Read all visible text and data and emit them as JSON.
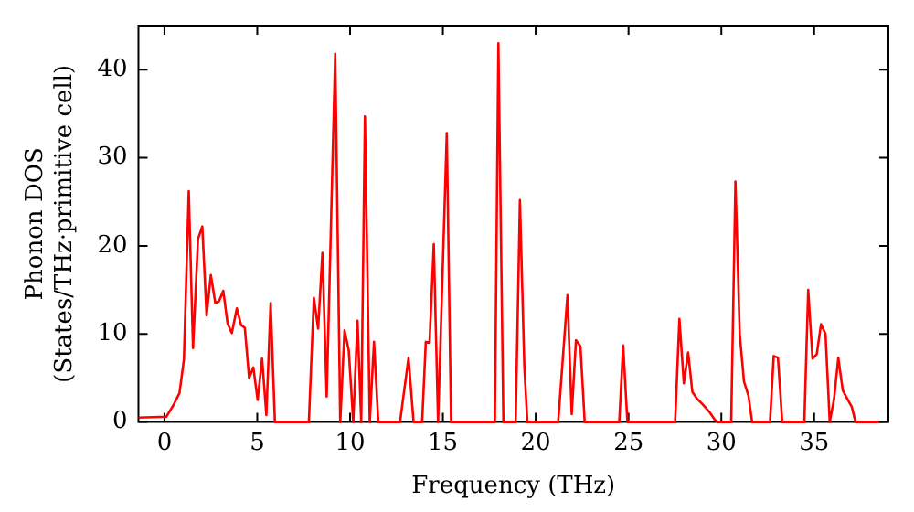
{
  "chart_data": {
    "type": "line",
    "xlabel": "Frequency (THz)",
    "ylabel": "Phonon DOS\n(States/THz·primitive cell)",
    "x": [
      -1.4,
      0.1,
      0.48,
      0.81,
      1.05,
      1.31,
      1.54,
      1.81,
      2.04,
      2.27,
      2.5,
      2.74,
      2.94,
      3.17,
      3.4,
      3.63,
      3.9,
      4.13,
      4.33,
      4.56,
      4.79,
      5.02,
      5.26,
      5.49,
      5.72,
      5.95,
      7.78,
      8.05,
      8.28,
      8.51,
      8.74,
      9.2,
      9.47,
      9.7,
      9.93,
      10.17,
      10.4,
      10.6,
      10.8,
      11.06,
      11.29,
      11.52,
      12.69,
      13.15,
      13.42,
      13.88,
      14.08,
      14.28,
      14.51,
      14.74,
      15.21,
      15.44,
      17.8,
      17.99,
      18.26,
      18.92,
      19.15,
      19.39,
      19.55,
      21.21,
      21.71,
      21.94,
      22.17,
      22.41,
      22.64,
      24.5,
      24.71,
      24.94,
      27.51,
      27.74,
      27.98,
      28.21,
      28.44,
      28.67,
      29.0,
      29.34,
      29.67,
      29.83,
      30.53,
      30.76,
      30.99,
      31.22,
      31.46,
      31.66,
      32.62,
      32.82,
      33.05,
      33.28,
      34.47,
      34.68,
      34.91,
      35.14,
      35.37,
      35.61,
      35.84,
      36.07,
      36.3,
      36.54,
      36.77,
      37.03,
      37.23,
      38.5
    ],
    "series": [
      {
        "color": "#ff0000",
        "values": [
          0.5,
          0.6,
          1.9,
          3.3,
          7.1,
          26.2,
          8.4,
          20.8,
          22.2,
          12.1,
          16.7,
          13.5,
          13.7,
          14.9,
          11.2,
          10.1,
          12.9,
          11.0,
          10.7,
          5.0,
          6.2,
          2.5,
          7.2,
          0.8,
          13.5,
          0,
          0,
          14.1,
          10.6,
          19.2,
          2.9,
          41.8,
          0,
          10.4,
          8.1,
          0,
          11.5,
          0,
          34.7,
          0,
          9.1,
          0,
          0,
          7.3,
          0,
          0,
          9.1,
          9.0,
          20.2,
          0,
          32.8,
          0,
          0,
          43,
          0,
          0,
          25.2,
          6.2,
          0,
          0,
          14.4,
          0.9,
          9.3,
          8.6,
          0,
          0,
          8.7,
          0,
          0,
          11.7,
          4.4,
          7.9,
          3.4,
          2.7,
          2.0,
          1.2,
          0.2,
          0,
          0,
          27.3,
          10.0,
          4.6,
          3.0,
          0,
          0,
          7.5,
          7.3,
          0,
          0,
          15.0,
          7.2,
          7.7,
          11.1,
          10.0,
          0,
          2.6,
          7.3,
          3.6,
          2.7,
          1.7,
          0,
          0
        ]
      }
    ],
    "xlim": [
      -1.4,
      39
    ],
    "ylim": [
      0,
      45
    ],
    "xticks": [
      0,
      5,
      10,
      15,
      20,
      25,
      30,
      35
    ],
    "yticks": [
      0,
      10,
      20,
      30,
      40
    ],
    "grid": false,
    "legend": false,
    "marker": "none",
    "line_style": "solid"
  }
}
